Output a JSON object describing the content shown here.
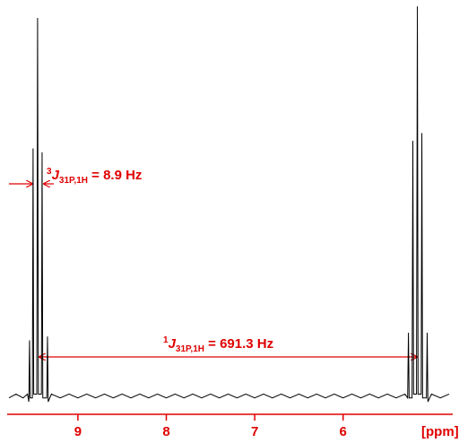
{
  "chart_data": {
    "type": "line",
    "x_label": "[ppm]",
    "xlim": [
      9.8,
      4.76
    ],
    "ylim": [
      0,
      100
    ],
    "xticks": [
      9,
      8,
      7,
      6
    ],
    "color": "#000000",
    "axis_color": "#e00000",
    "x": [
      9.78,
      9.7,
      9.62,
      9.57,
      9.555,
      9.547,
      9.54,
      9.515,
      9.507,
      9.5,
      9.465,
      9.456,
      9.447,
      9.413,
      9.405,
      9.397,
      9.352,
      9.344,
      9.336,
      9.3,
      9.2,
      9.1,
      9.0,
      8.9,
      8.8,
      8.7,
      8.6,
      8.5,
      8.4,
      8.3,
      8.2,
      8.1,
      8.0,
      7.9,
      7.8,
      7.7,
      7.6,
      7.5,
      7.4,
      7.3,
      7.2,
      7.1,
      7.0,
      6.9,
      6.8,
      6.7,
      6.6,
      6.5,
      6.4,
      6.3,
      6.2,
      6.1,
      6.0,
      5.9,
      5.8,
      5.7,
      5.6,
      5.5,
      5.4,
      5.3,
      5.27,
      5.261,
      5.253,
      5.22,
      5.211,
      5.203,
      5.17,
      5.16,
      5.152,
      5.117,
      5.109,
      5.101,
      5.057,
      5.049,
      5.041,
      5.0,
      4.9,
      4.8
    ],
    "values": [
      1,
      2,
      1,
      2,
      0,
      16,
      1,
      1,
      66,
      2,
      2,
      100,
      2,
      2,
      65,
      1,
      1,
      17,
      0,
      2,
      1,
      2,
      1,
      2,
      1,
      2,
      1,
      2,
      1,
      2,
      1,
      2,
      1,
      2,
      1,
      2,
      1,
      2,
      1,
      2,
      1,
      2,
      1,
      2,
      1,
      2,
      1,
      2,
      1,
      2,
      1,
      2,
      1,
      2,
      1,
      2,
      1,
      2,
      1,
      2,
      1,
      18,
      1,
      1,
      68,
      2,
      2,
      103,
      2,
      2,
      70,
      1,
      1,
      18,
      0,
      2,
      1,
      2
    ],
    "annotations": [
      {
        "sup": "3",
        "symbol": "J",
        "sub": "31P,1H",
        "text": " = 8.9 Hz"
      },
      {
        "sup": "1",
        "symbol": "J",
        "sub": "31P,1H",
        "text": " = 691.3 Hz"
      }
    ]
  }
}
